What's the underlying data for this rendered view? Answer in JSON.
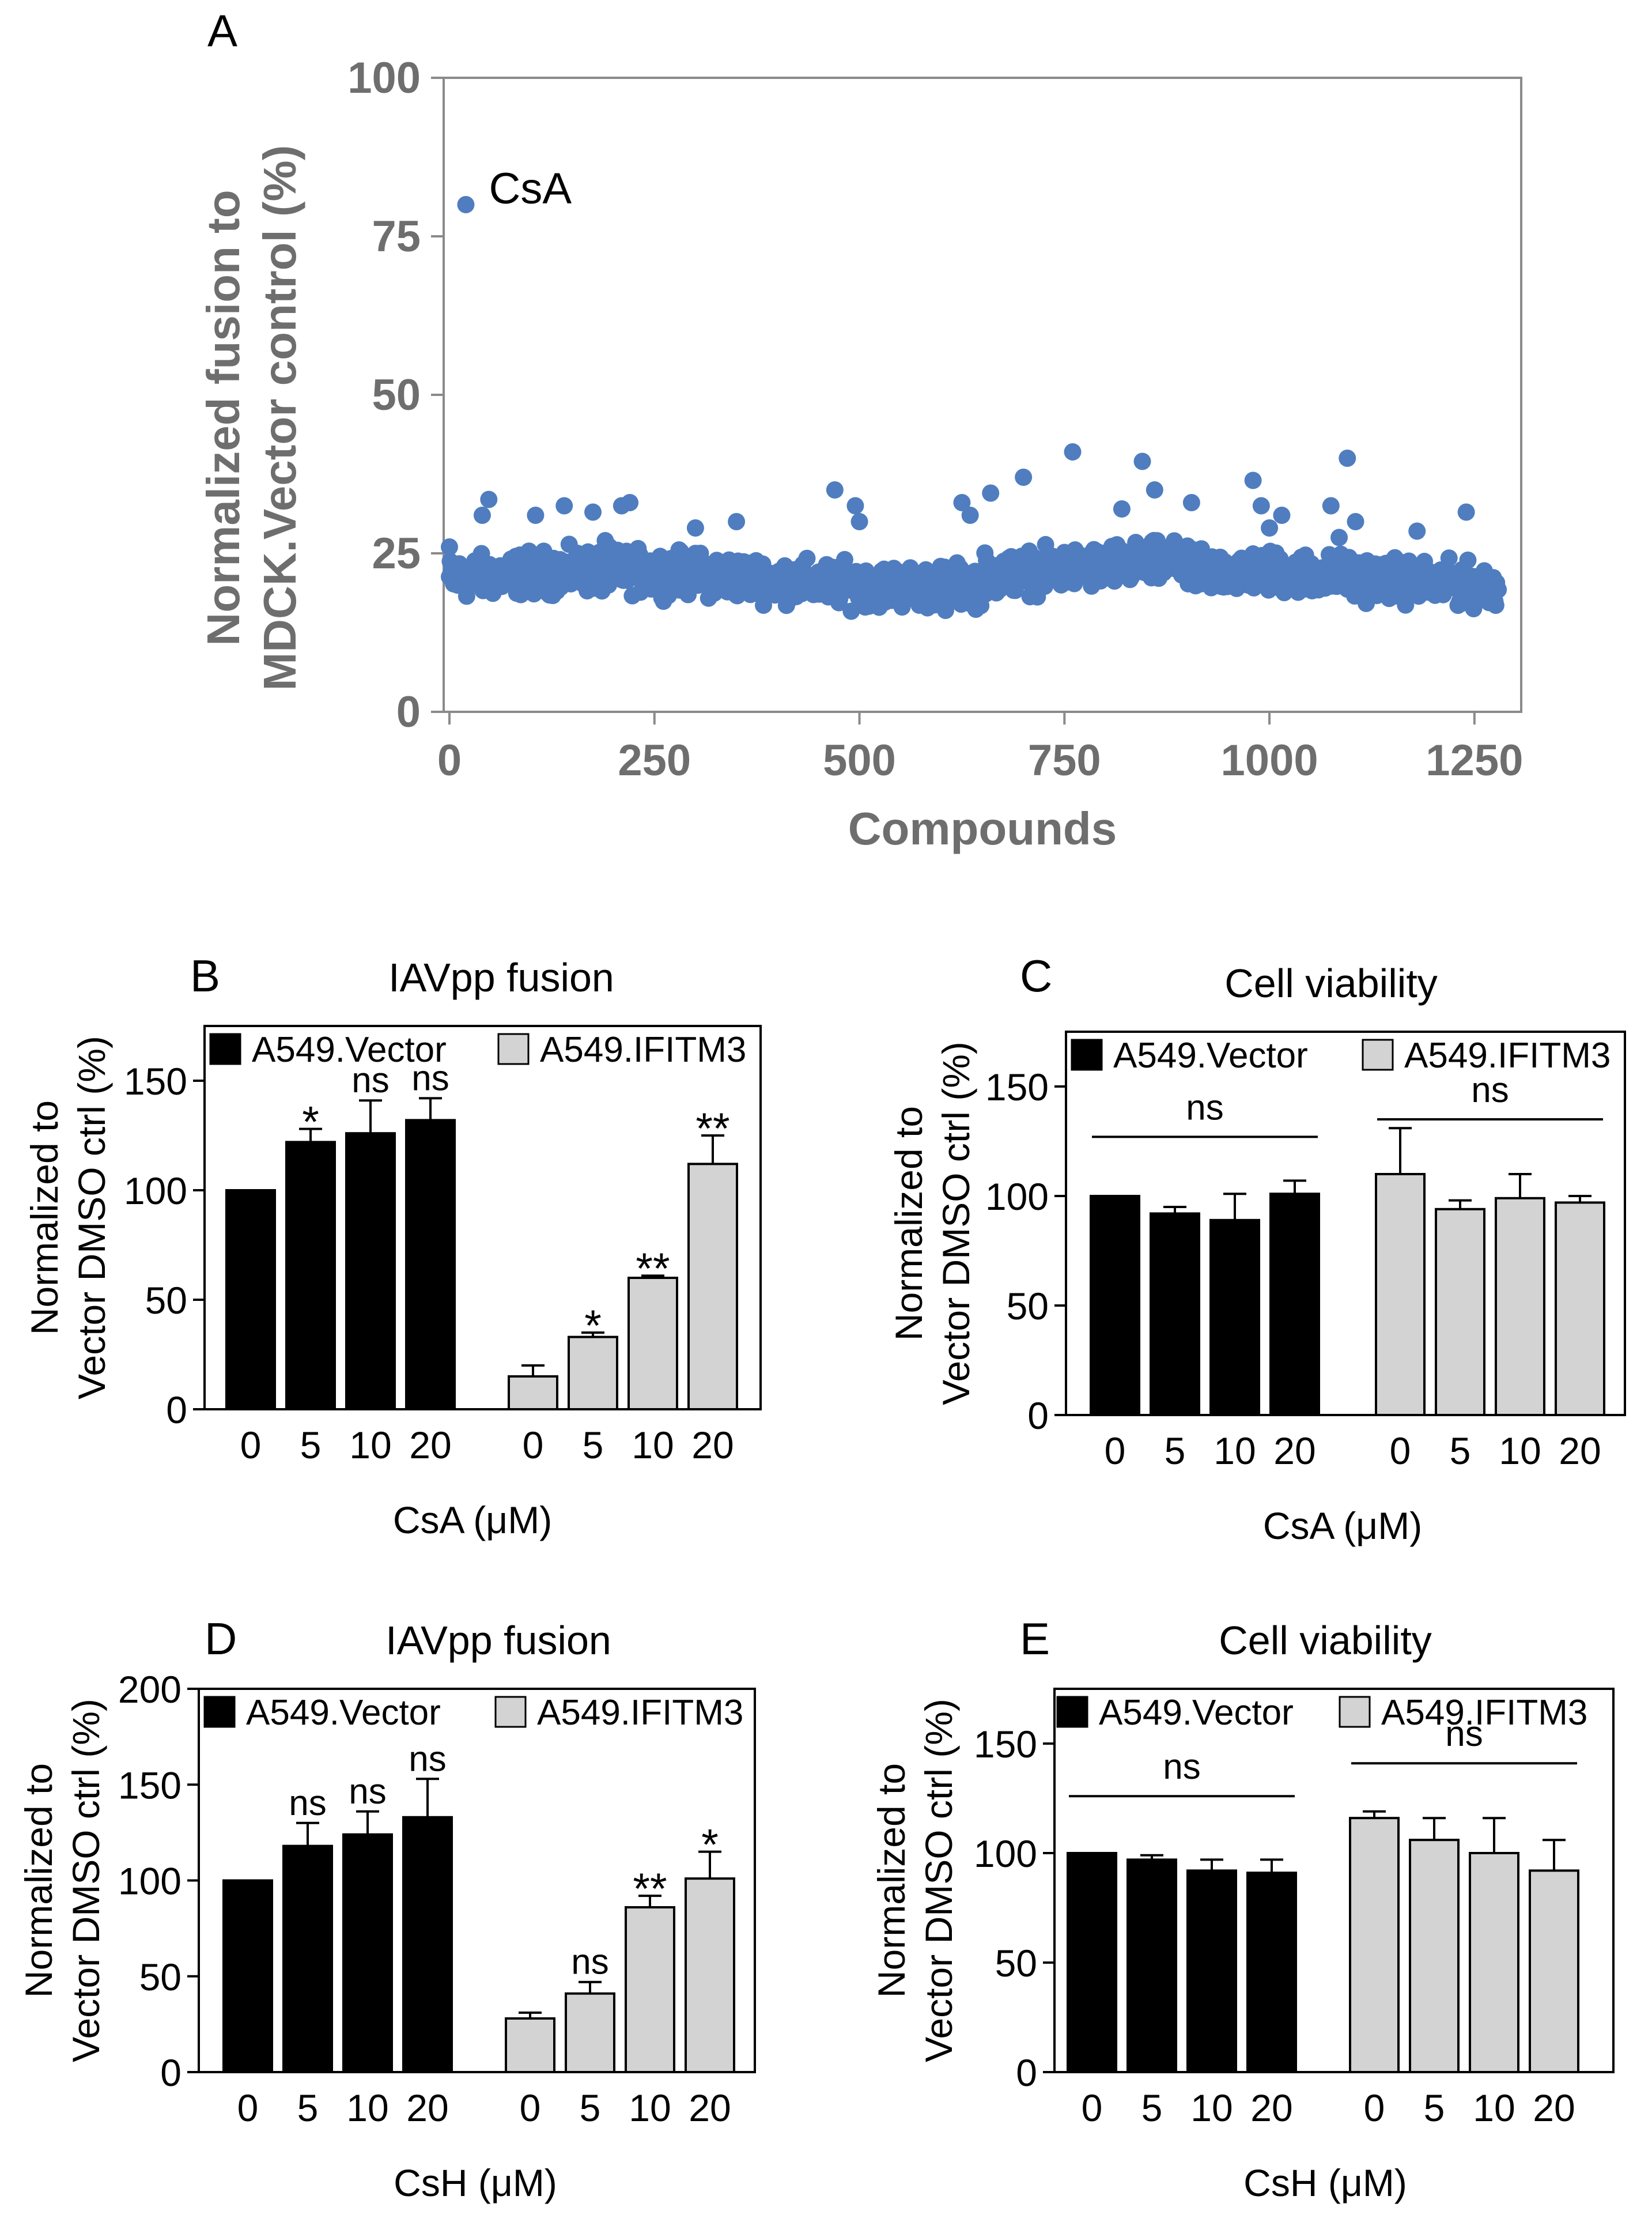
{
  "figure": {
    "panels": [
      {
        "letter": "A"
      },
      {
        "letter": "B"
      },
      {
        "letter": "C"
      },
      {
        "letter": "D"
      },
      {
        "letter": "E"
      }
    ]
  },
  "colors": {
    "scatter_point": "#4f7dbf",
    "bar_vector": "#000000",
    "bar_ifitm3": "#d3d3d3",
    "axis_gray": "#6e6e6e",
    "axis_black": "#000000"
  },
  "chart_data": [
    {
      "panel": "A",
      "type": "scatter",
      "title": "",
      "xlabel": "Compounds",
      "ylabel_lines": [
        "Normalized fusion to",
        "MDCK.Vector control (%)"
      ],
      "xlim": [
        0,
        1300
      ],
      "ylim": [
        0,
        100
      ],
      "xticks": [
        "0",
        "250",
        "500",
        "750",
        "1000",
        "1250"
      ],
      "yticks": [
        "0",
        "25",
        "50",
        "75",
        "100"
      ],
      "n_points": 1280,
      "baseline_mean": 21,
      "annotation": {
        "label": "CsA",
        "x": 20,
        "y": 80
      },
      "outliers": [
        {
          "x": 0,
          "y": 26
        },
        {
          "x": 40,
          "y": 31
        },
        {
          "x": 48,
          "y": 33.5
        },
        {
          "x": 105,
          "y": 31
        },
        {
          "x": 140,
          "y": 32.5
        },
        {
          "x": 175,
          "y": 31.5
        },
        {
          "x": 190,
          "y": 27
        },
        {
          "x": 210,
          "y": 32.5
        },
        {
          "x": 220,
          "y": 33
        },
        {
          "x": 300,
          "y": 29
        },
        {
          "x": 350,
          "y": 30
        },
        {
          "x": 470,
          "y": 35
        },
        {
          "x": 495,
          "y": 32.5
        },
        {
          "x": 500,
          "y": 30
        },
        {
          "x": 605,
          "y": 16
        },
        {
          "x": 625,
          "y": 33
        },
        {
          "x": 635,
          "y": 31
        },
        {
          "x": 660,
          "y": 34.5
        },
        {
          "x": 700,
          "y": 37
        },
        {
          "x": 760,
          "y": 41
        },
        {
          "x": 820,
          "y": 32
        },
        {
          "x": 845,
          "y": 39.5
        },
        {
          "x": 860,
          "y": 35
        },
        {
          "x": 905,
          "y": 33
        },
        {
          "x": 980,
          "y": 36.5
        },
        {
          "x": 990,
          "y": 32.5
        },
        {
          "x": 1015,
          "y": 31
        },
        {
          "x": 1000,
          "y": 29
        },
        {
          "x": 1075,
          "y": 32.5
        },
        {
          "x": 1095,
          "y": 40
        },
        {
          "x": 1105,
          "y": 30
        },
        {
          "x": 1085,
          "y": 27.5
        },
        {
          "x": 1180,
          "y": 28.5
        },
        {
          "x": 1240,
          "y": 31.5
        }
      ]
    },
    {
      "panel": "B",
      "type": "bar",
      "title": "IAVpp fusion",
      "xlabel": "CsA (μM)",
      "ylabel_lines": [
        "Normalized to",
        "Vector DMSO ctrl (%)"
      ],
      "ylim": [
        0,
        175
      ],
      "yticks": [
        "0",
        "50",
        "100",
        "150"
      ],
      "categories": [
        "0",
        "5",
        "10",
        "20"
      ],
      "series": [
        {
          "name": "A549.Vector",
          "values": [
            100,
            122,
            126,
            132
          ],
          "errors": [
            0,
            6,
            15,
            10
          ],
          "significance": [
            "",
            "*",
            "ns",
            "ns"
          ]
        },
        {
          "name": "A549.IFITM3",
          "values": [
            15,
            33,
            60,
            112
          ],
          "errors": [
            5,
            2,
            1,
            13
          ],
          "significance": [
            "",
            "*",
            "**",
            "**"
          ]
        }
      ]
    },
    {
      "panel": "C",
      "type": "bar",
      "title": "Cell viability",
      "xlabel": "CsA (μM)",
      "ylabel_lines": [
        "Normalized to",
        "Vector DMSO ctrl (%)"
      ],
      "ylim": [
        0,
        175
      ],
      "yticks": [
        "0",
        "50",
        "100",
        "150"
      ],
      "categories": [
        "0",
        "5",
        "10",
        "20"
      ],
      "series": [
        {
          "name": "A549.Vector",
          "values": [
            100,
            92,
            89,
            101
          ],
          "errors": [
            0,
            3,
            12,
            6
          ],
          "group_significance": "ns",
          "group_line_y": 127
        },
        {
          "name": "A549.IFITM3",
          "values": [
            110,
            94,
            99,
            97
          ],
          "errors": [
            21,
            4,
            11,
            3
          ],
          "group_significance": "ns",
          "group_line_y": 135
        }
      ]
    },
    {
      "panel": "D",
      "type": "bar",
      "title": "IAVpp fusion",
      "xlabel": "CsH (μM)",
      "ylabel_lines": [
        "Normalized to",
        "Vector DMSO ctrl (%)"
      ],
      "ylim": [
        0,
        200
      ],
      "yticks": [
        "0",
        "50",
        "100",
        "150",
        "200"
      ],
      "categories": [
        "0",
        "5",
        "10",
        "20"
      ],
      "series": [
        {
          "name": "A549.Vector",
          "values": [
            100,
            118,
            124,
            133
          ],
          "errors": [
            0,
            12,
            12,
            20
          ],
          "significance": [
            "",
            "ns",
            "ns",
            "ns"
          ]
        },
        {
          "name": "A549.IFITM3",
          "values": [
            28,
            41,
            86,
            101
          ],
          "errors": [
            3,
            6,
            6,
            14
          ],
          "significance": [
            "",
            "ns",
            "**",
            "*"
          ]
        }
      ]
    },
    {
      "panel": "E",
      "type": "bar",
      "title": "Cell viability",
      "xlabel": "CsH (μM)",
      "ylabel_lines": [
        "Normalized to",
        "Vector DMSO ctrl (%)"
      ],
      "ylim": [
        0,
        175
      ],
      "yticks": [
        "0",
        "50",
        "100",
        "150"
      ],
      "categories": [
        "0",
        "5",
        "10",
        "20"
      ],
      "series": [
        {
          "name": "A549.Vector",
          "values": [
            100,
            97,
            92,
            91
          ],
          "errors": [
            0,
            2,
            5,
            6
          ],
          "group_significance": "ns",
          "group_line_y": 126
        },
        {
          "name": "A549.IFITM3",
          "values": [
            116,
            106,
            100,
            92
          ],
          "errors": [
            3,
            10,
            16,
            14
          ],
          "group_significance": "ns",
          "group_line_y": 141
        }
      ]
    }
  ]
}
